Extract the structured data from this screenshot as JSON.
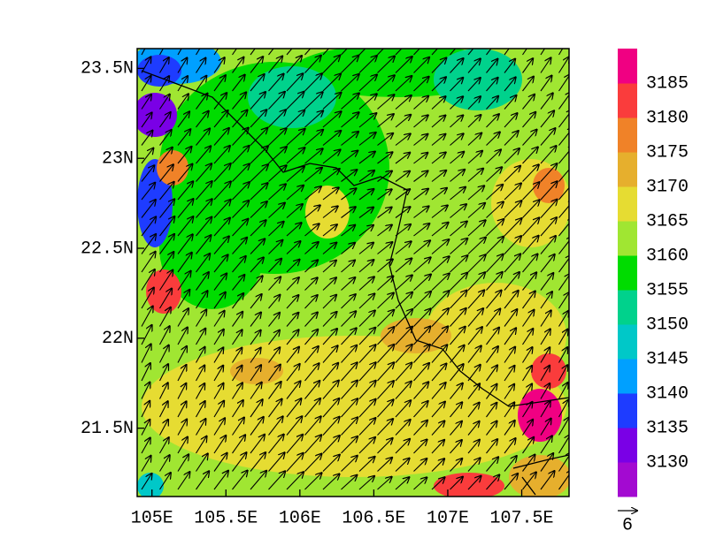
{
  "map": {
    "x_axis": {
      "lim": [
        104.9,
        107.82
      ],
      "ticks": [
        {
          "value": 105,
          "label": "105E"
        },
        {
          "value": 105.5,
          "label": "105.5E"
        },
        {
          "value": 106,
          "label": "106E"
        },
        {
          "value": 106.5,
          "label": "106.5E"
        },
        {
          "value": 107,
          "label": "107E"
        },
        {
          "value": 107.5,
          "label": "107.5E"
        }
      ]
    },
    "y_axis": {
      "lim": [
        21.12,
        23.61
      ],
      "ticks": [
        {
          "value": 21.5,
          "label": "21.5N"
        },
        {
          "value": 22,
          "label": "22N"
        },
        {
          "value": 22.5,
          "label": "22.5N"
        },
        {
          "value": 23,
          "label": "23N"
        },
        {
          "value": 23.5,
          "label": "23.5N"
        }
      ]
    },
    "colorbar": {
      "labels": [
        3130,
        3135,
        3140,
        3145,
        3150,
        3155,
        3160,
        3165,
        3170,
        3175,
        3180,
        3185
      ],
      "colors": [
        "#a30ad1",
        "#7a00e6",
        "#1e3cff",
        "#00a0ff",
        "#00c8c8",
        "#00d28c",
        "#00dc00",
        "#a0e632",
        "#e6dc32",
        "#e6af2d",
        "#f08228",
        "#fa3c3c",
        "#f00082"
      ]
    },
    "reference_vector": {
      "label": "6"
    }
  }
}
